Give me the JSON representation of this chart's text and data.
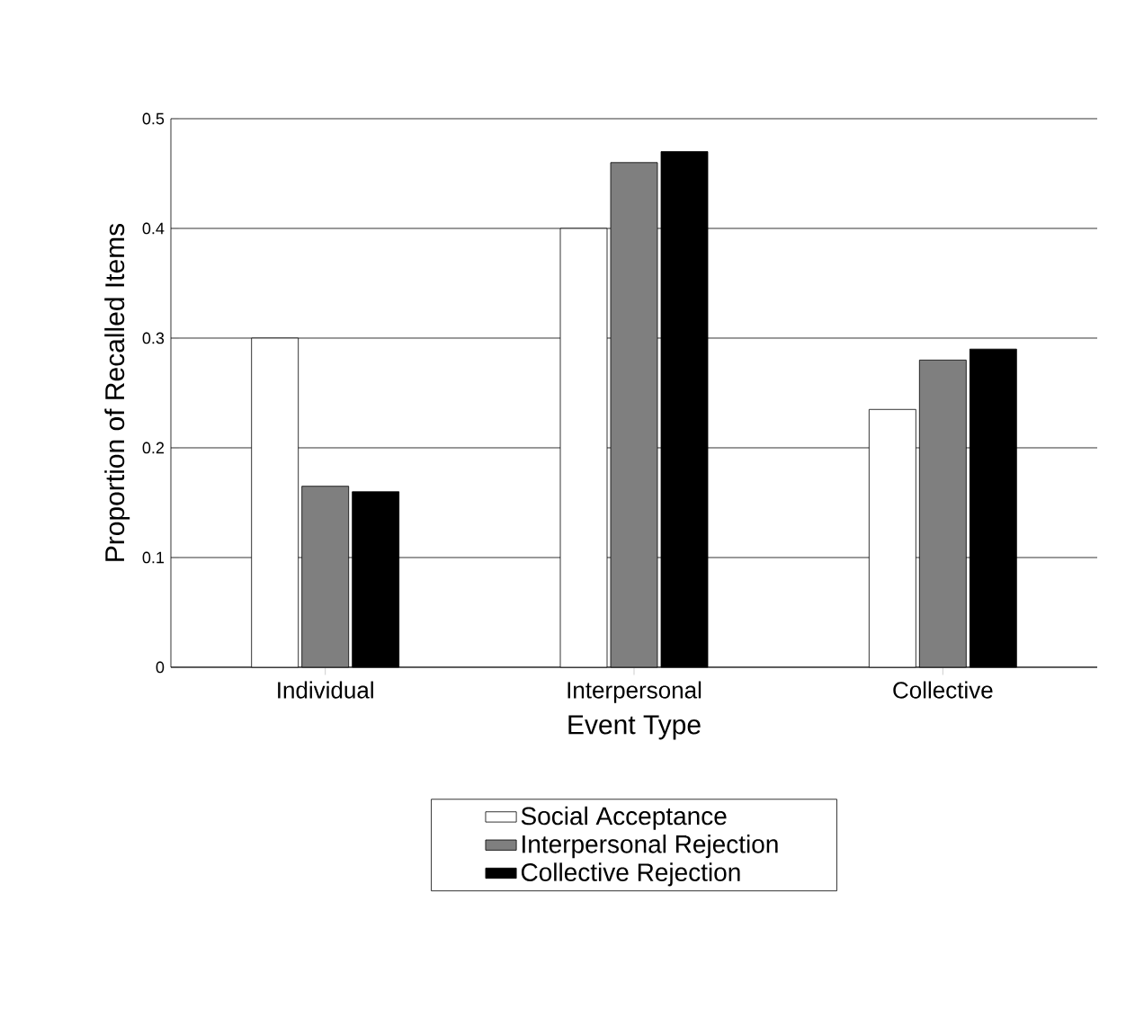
{
  "chart_data": {
    "type": "bar",
    "xlabel": "Event Type",
    "ylabel": "Proportion of Recalled Items",
    "categories": [
      "Individual",
      "Interpersonal",
      "Collective"
    ],
    "series": [
      {
        "name": "Social Acceptance",
        "color": "#ffffff",
        "values": [
          0.3,
          0.4,
          0.235
        ]
      },
      {
        "name": "Interpersonal Rejection",
        "color": "#7f7f7f",
        "values": [
          0.165,
          0.46,
          0.28
        ]
      },
      {
        "name": "Collective Rejection",
        "color": "#000000",
        "values": [
          0.16,
          0.47,
          0.29
        ]
      }
    ],
    "ylim": [
      0,
      0.5
    ],
    "yticks": [
      0,
      0.1,
      0.2,
      0.3,
      0.4,
      0.5
    ],
    "grid": "y",
    "legend": "bottom"
  }
}
